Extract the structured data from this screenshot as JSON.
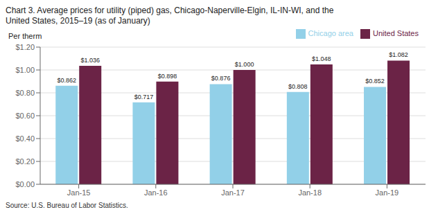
{
  "chart_data": {
    "type": "bar",
    "title": "Chart 3. Average prices for utility (piped) gas, Chicago-Naperville-Elgin, IL-IN-WI, and the",
    "subtitle": "United States, 2015–19 (as of January)",
    "y_label": "Per therm",
    "source": "Source: U.S. Bureau of Labor Statistics.",
    "categories": [
      "Jan-15",
      "Jan-16",
      "Jan-17",
      "Jan-18",
      "Jan-19"
    ],
    "series": [
      {
        "name": "Chicago area",
        "color": "#92D0E8",
        "values": [
          0.862,
          0.717,
          0.876,
          0.808,
          0.852
        ],
        "value_labels": [
          "$0.862",
          "$0.717",
          "$0.876",
          "$0.808",
          "$0.852"
        ]
      },
      {
        "name": "United States",
        "color": "#6B2346",
        "values": [
          1.036,
          0.898,
          1.0,
          1.048,
          1.082
        ],
        "value_labels": [
          "$1.036",
          "$0.898",
          "$1.000",
          "$1.048",
          "$1.082"
        ]
      }
    ],
    "ylim": [
      0.0,
      1.2
    ],
    "yticks": [
      {
        "value": 0.0,
        "label": "$0.00"
      },
      {
        "value": 0.2,
        "label": "$0.20"
      },
      {
        "value": 0.4,
        "label": "$0.40"
      },
      {
        "value": 0.6,
        "label": "$0.60"
      },
      {
        "value": 0.8,
        "label": "$0.80"
      },
      {
        "value": 1.0,
        "label": "$1.00"
      },
      {
        "value": 1.2,
        "label": "$1.20"
      }
    ],
    "grid": true,
    "legend": "upper right",
    "data_labels": true
  }
}
